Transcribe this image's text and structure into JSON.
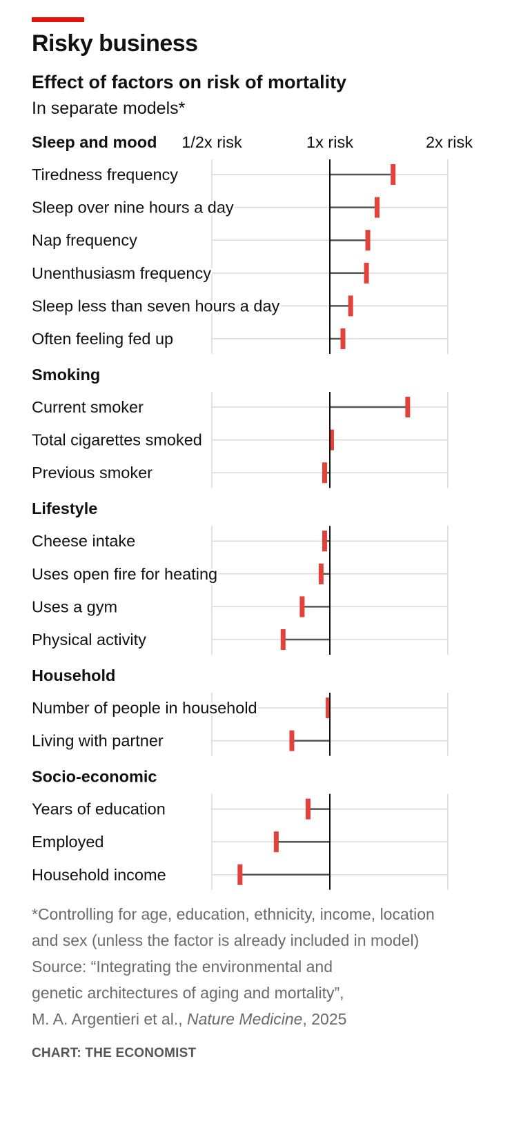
{
  "header": {
    "title": "Risky business",
    "accent_color": "#e3120b"
  },
  "chart_data": {
    "type": "range-dot",
    "title": "Effect of factors on risk of mortality",
    "subtitle": "In separate models*",
    "xscale": "log2",
    "xlim": [
      0.5,
      2
    ],
    "reference": 1,
    "tick_labels": [
      "1/2x risk",
      "1x risk",
      "2x risk"
    ],
    "ticks": [
      0.5,
      1,
      2
    ],
    "groups": [
      {
        "name": "Sleep and mood",
        "items": [
          {
            "label": "Tiredness frequency",
            "value": 1.45
          },
          {
            "label": "Sleep over nine hours a day",
            "value": 1.32
          },
          {
            "label": "Nap frequency",
            "value": 1.25
          },
          {
            "label": "Unenthusiasm frequency",
            "value": 1.24
          },
          {
            "label": "Sleep less than seven hours a day",
            "value": 1.13
          },
          {
            "label": "Often feeling fed up",
            "value": 1.08
          }
        ]
      },
      {
        "name": "Smoking",
        "items": [
          {
            "label": "Current smoker",
            "value": 1.58
          },
          {
            "label": "Total cigarettes smoked",
            "value": 1.01
          },
          {
            "label": "Previous smoker",
            "value": 0.97
          }
        ]
      },
      {
        "name": "Lifestyle",
        "items": [
          {
            "label": "Cheese intake",
            "value": 0.97
          },
          {
            "label": "Uses open fire for heating",
            "value": 0.95
          },
          {
            "label": "Uses a gym",
            "value": 0.85
          },
          {
            "label": "Physical activity",
            "value": 0.76
          }
        ]
      },
      {
        "name": "Household",
        "items": [
          {
            "label": "Number of people in household",
            "value": 0.99
          },
          {
            "label": "Living with partner",
            "value": 0.8
          }
        ]
      },
      {
        "name": "Socio-economic",
        "items": [
          {
            "label": "Years of education",
            "value": 0.88
          },
          {
            "label": "Employed",
            "value": 0.73
          },
          {
            "label": "Household income",
            "value": 0.59
          }
        ]
      }
    ],
    "colors": {
      "marker": "#e3423b",
      "bar": "#555555",
      "grid": "#d9d9d9",
      "reference": "#111111"
    }
  },
  "footer": {
    "lines": [
      "*Controlling for age, education, ethnicity, income, location",
      "and sex (unless the factor is already included in model)",
      "Source: “Integrating the environmental and",
      "genetic architectures of aging and mortality”,"
    ],
    "source_authors": "M. A. Argentieri et al., ",
    "source_journal": "Nature Medicine",
    "source_year": ", 2025",
    "credit": "CHART: THE ECONOMIST"
  }
}
